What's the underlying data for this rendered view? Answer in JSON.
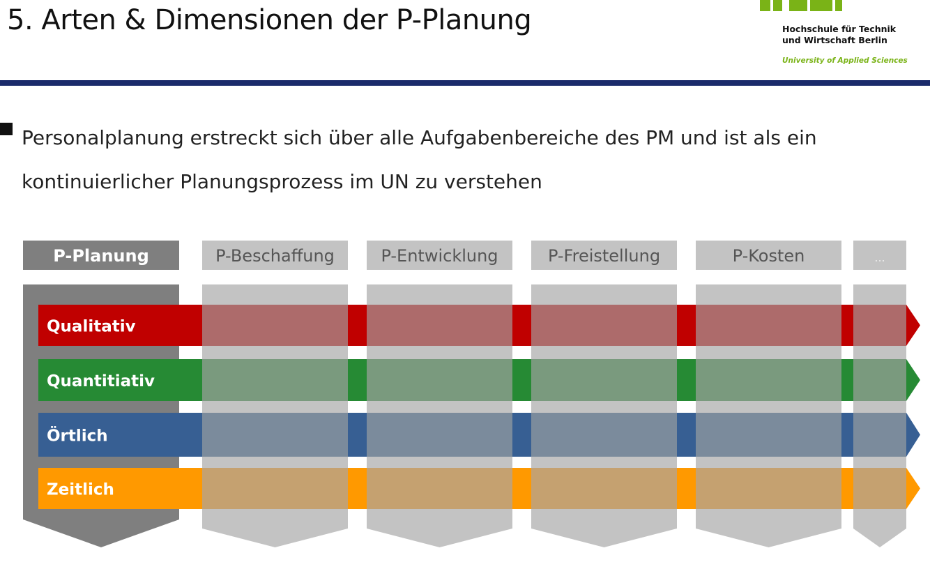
{
  "slide": {
    "title": "5. Arten & Dimensionen der P-Planung",
    "bullet": "Personalplanung erstreckt sich über alle Aufgabenbereiche des PM und ist als ein kontinuierlicher Planungsprozess im UN zu verstehen"
  },
  "logo": {
    "line1": "Hochschule für Technik",
    "line2": "und Wirtschaft Berlin",
    "line3": "University of Applied Sciences",
    "accent_color": "#7ab317"
  },
  "diagram": {
    "main": {
      "label": "P-Planung",
      "color": "#7f7f7f"
    },
    "areas": [
      {
        "label": "P-Beschaffung"
      },
      {
        "label": "P-Entwicklung"
      },
      {
        "label": "P-Freistellung"
      },
      {
        "label": "P-Kosten"
      },
      {
        "label": "..."
      }
    ],
    "dimensions": [
      {
        "label": "Qualitativ",
        "color": "#c00000",
        "overlay": "#ad6b6b"
      },
      {
        "label": "Quantitiativ",
        "color": "#268a34",
        "overlay": "#7a9a7e"
      },
      {
        "label": "Örtlich",
        "color": "#375f93",
        "overlay": "#7b8b9c"
      },
      {
        "label": "Zeitlich",
        "color": "#ff9900",
        "overlay": "#c5a170"
      }
    ],
    "column_color": "#c3c3c3"
  }
}
